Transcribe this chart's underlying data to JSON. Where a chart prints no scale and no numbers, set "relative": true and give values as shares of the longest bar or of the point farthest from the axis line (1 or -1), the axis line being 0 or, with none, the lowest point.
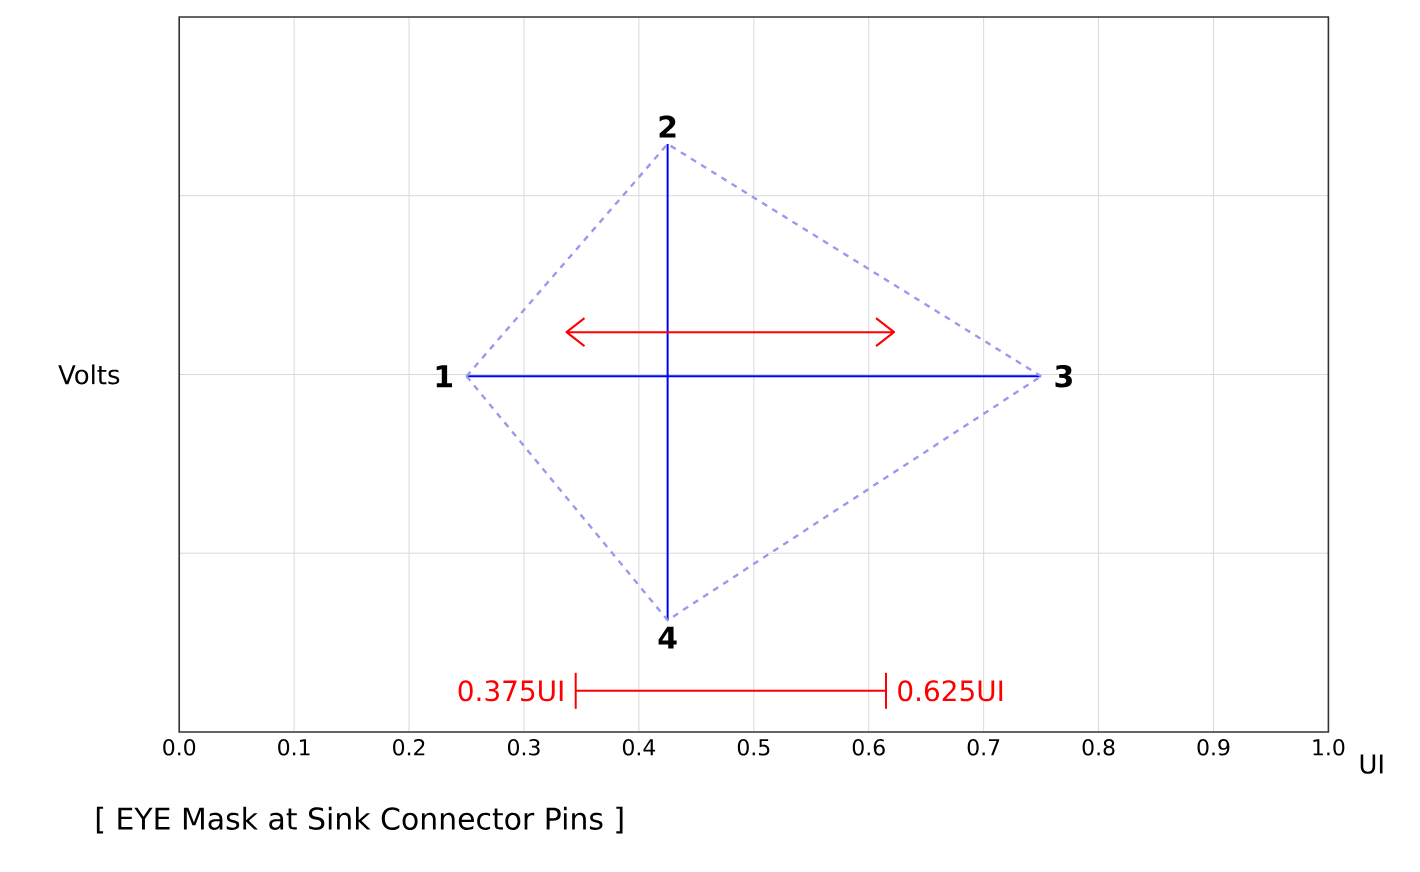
{
  "chart_data": {
    "type": "line",
    "relative": true,
    "title": "[ EYE Mask at Sink Connector Pins ]",
    "xlabel": "UI",
    "ylabel": "Volts",
    "xlim": [
      0,
      1
    ],
    "xticks": [
      {
        "value": 0,
        "label": "0.0"
      },
      0.1,
      0.2,
      0.3,
      0.4,
      0.5,
      0.6,
      0.7,
      0.8,
      0.9,
      {
        "value": 1,
        "label": "1.0"
      }
    ],
    "grid": true,
    "line_style": "solid",
    "series": [
      {
        "color": "#0000ff",
        "x": [
          0.25,
          0.75
        ],
        "values": [
          0.605,
          0.605
        ]
      },
      {
        "color": "#0000ff",
        "x": [
          0.425,
          0.425
        ],
        "values": [
          1,
          0.19
        ]
      },
      {
        "color": "#9999ee",
        "line_style": "dashed",
        "x": [
          0.25,
          0.425,
          0.75
        ],
        "values": [
          0.605,
          1,
          0.605
        ]
      },
      {
        "color": "#9999ee",
        "line_style": "dashed",
        "x": [
          0.25,
          0.425,
          0.75
        ],
        "values": [
          0.605,
          0.19,
          0.605
        ]
      },
      {
        "color": "#ff0000",
        "x": [
          0.337,
          0.622
        ],
        "values": [
          0.68,
          0.68
        ]
      },
      {
        "color": "#ff0000",
        "x": [
          0.345,
          0.615
        ],
        "values": [
          0.07,
          0.07
        ]
      }
    ],
    "annotations": [
      {
        "text": "1",
        "x": 0.25,
        "y": 0.605
      },
      {
        "text": "2",
        "x": 0.425,
        "y": 1
      },
      {
        "text": "3",
        "x": 0.75,
        "y": 0.605
      },
      {
        "text": "4",
        "x": 0.425,
        "y": 0.19
      },
      {
        "text": "0.375UI",
        "x": 0.345,
        "y": 0.07
      },
      {
        "text": "0.625UI",
        "x": 0.615,
        "y": 0.07
      }
    ]
  }
}
